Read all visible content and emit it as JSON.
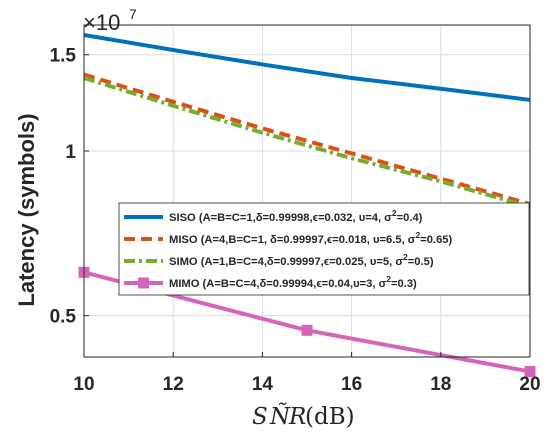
{
  "chart_data": {
    "type": "line",
    "xlabel": "SÑR(dB)",
    "xlabel_math": {
      "base": "S",
      "tilde": "Ñ",
      "rest": "R",
      "unit": "(dB)"
    },
    "ylabel": "Latency (symbols)",
    "y_multiplier": {
      "base": "×10",
      "exponent": "7"
    },
    "y_scale": "log",
    "xlim": [
      10,
      20
    ],
    "ylim": [
      0.42,
      1.7
    ],
    "x_ticks": [
      10,
      12,
      14,
      16,
      18,
      20
    ],
    "x_tick_labels": [
      "10",
      "12",
      "14",
      "16",
      "18",
      "20"
    ],
    "y_ticks": [
      0.5,
      1,
      1.5
    ],
    "y_tick_labels": [
      "0.5",
      "1",
      "1.5"
    ],
    "grid": true,
    "legend_position": "center-right",
    "series": [
      {
        "name": "SISO (A=B=C=1,δ=0.99998,ϵ=0.032, υ=4, σ²=0.4)",
        "name_parts": {
          "main": "SISO (A=B=C=1,δ=0.99998,ϵ=0.032, υ=4, σ",
          "sup": "2",
          "end": "=0.4)"
        },
        "color": "#0072BD",
        "style": "solid",
        "marker": "none",
        "x": [
          10,
          12,
          14,
          16,
          18,
          20
        ],
        "values": [
          1.63,
          1.53,
          1.44,
          1.36,
          1.3,
          1.24
        ]
      },
      {
        "name": "MISO (A=4,B=C=1, δ=0.99997,ϵ=0.018, υ=6.5, σ²=0.65)",
        "name_parts": {
          "main": "MISO (A=4,B=C=1, δ=0.99997,ϵ=0.018, υ=6.5, σ",
          "sup": "2",
          "end": "=0.65)"
        },
        "color": "#D95319",
        "style": "dashed",
        "marker": "none",
        "x": [
          10,
          12,
          14,
          16,
          18,
          20
        ],
        "values": [
          1.38,
          1.23,
          1.1,
          0.99,
          0.89,
          0.8
        ]
      },
      {
        "name": "SIMO (A=1,B=C=4,δ=0.99997,ϵ=0.025, υ=5, σ²=0.5)",
        "name_parts": {
          "main": "SIMO (A=1,B=C=4,δ=0.99997,ϵ=0.025, υ=5, σ",
          "sup": "2",
          "end": "=0.5)"
        },
        "color": "#77AC30",
        "style": "dashdot",
        "marker": "none",
        "x": [
          10,
          12,
          14,
          16,
          18,
          20
        ],
        "values": [
          1.36,
          1.21,
          1.08,
          0.97,
          0.88,
          0.79
        ]
      },
      {
        "name": "MIMO (A=B=C=4,δ=0.99994,ϵ=0.04,υ=3, σ²=0.3)",
        "name_parts": {
          "main": "MIMO (A=B=C=4,δ=0.99994,ϵ=0.04,υ=3, σ",
          "sup": "2",
          "end": "=0.3)"
        },
        "color": "#D464B9",
        "style": "solid",
        "marker": "square",
        "x": [
          10,
          15,
          20
        ],
        "values": [
          0.6,
          0.47,
          0.395
        ]
      }
    ]
  }
}
